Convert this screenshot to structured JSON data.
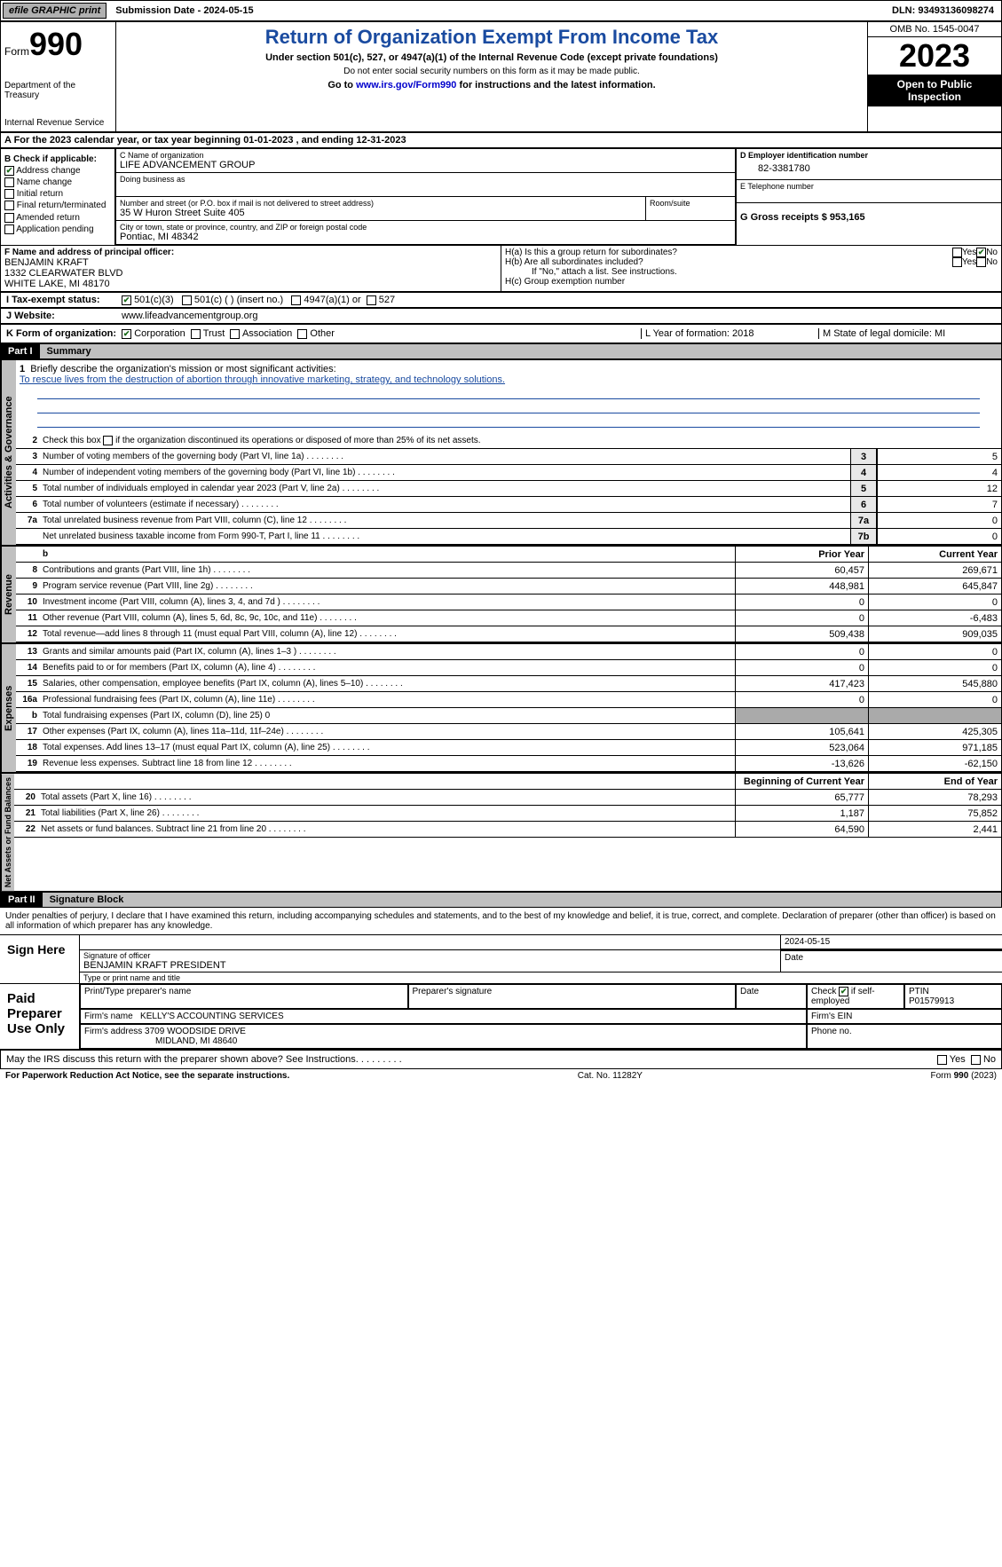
{
  "topbar": {
    "efile": "efile GRAPHIC print",
    "submission_label": "Submission Date - 2024-05-15",
    "dln": "DLN: 93493136098274"
  },
  "header": {
    "form_word": "Form",
    "form_num": "990",
    "dept": "Department of the Treasury",
    "irs": "Internal Revenue Service",
    "title": "Return of Organization Exempt From Income Tax",
    "subtitle": "Under section 501(c), 527, or 4947(a)(1) of the Internal Revenue Code (except private foundations)",
    "warn": "Do not enter social security numbers on this form as it may be made public.",
    "go_prefix": "Go to ",
    "go_link": "www.irs.gov/Form990",
    "go_suffix": " for instructions and the latest information.",
    "omb": "OMB No. 1545-0047",
    "year": "2023",
    "open": "Open to Public Inspection"
  },
  "row_a": "A For the 2023 calendar year, or tax year beginning 01-01-2023    , and ending 12-31-2023",
  "col_b": {
    "title": "B Check if applicable:",
    "addr_change": "Address change",
    "name_change": "Name change",
    "initial": "Initial return",
    "final": "Final return/terminated",
    "amended": "Amended return",
    "pending": "Application pending"
  },
  "org": {
    "c_label": "C Name of organization",
    "name": "LIFE ADVANCEMENT GROUP",
    "dba_label": "Doing business as",
    "addr_label": "Number and street (or P.O. box if mail is not delivered to street address)",
    "addr": "35 W Huron Street Suite 405",
    "room_label": "Room/suite",
    "city_label": "City or town, state or province, country, and ZIP or foreign postal code",
    "city": "Pontiac, MI  48342"
  },
  "right": {
    "d_label": "D Employer identification number",
    "ein": "82-3381780",
    "e_label": "E Telephone number",
    "g_label": "G Gross receipts $ 953,165"
  },
  "officer": {
    "f_label": "F  Name and address of principal officer:",
    "name": "BENJAMIN KRAFT",
    "addr1": "1332 CLEARWATER BLVD",
    "addr2": "WHITE LAKE, MI  48170"
  },
  "h": {
    "ha": "H(a)  Is this a group return for subordinates?",
    "hb": "H(b)  Are all subordinates included?",
    "hb_note": "If \"No,\" attach a list. See instructions.",
    "hc": "H(c)  Group exemption number",
    "yes": "Yes",
    "no": "No"
  },
  "row_i": {
    "label": "I    Tax-exempt status:",
    "c3": "501(c)(3)",
    "c": "501(c) (  ) (insert no.)",
    "a1": "4947(a)(1) or",
    "s527": "527"
  },
  "row_j": {
    "label": "J   Website:",
    "val": "www.lifeadvancementgroup.org"
  },
  "row_k": {
    "label": "K Form of organization:",
    "corp": "Corporation",
    "trust": "Trust",
    "assoc": "Association",
    "other": "Other",
    "l": "L Year of formation: 2018",
    "m": "M State of legal domicile: MI"
  },
  "part1": {
    "hdr": "Part I",
    "title": "Summary"
  },
  "mission": {
    "label": "Briefly describe the organization's mission or most significant activities:",
    "text": "To rescue lives from the destruction of abortion through innovative marketing, strategy, and technology solutions."
  },
  "line2": "Check this box      if the organization discontinued its operations or disposed of more than 25% of its net assets.",
  "lines_gov": [
    {
      "n": "3",
      "d": "Number of voting members of the governing body (Part VI, line 1a)",
      "b": "3",
      "v": "5"
    },
    {
      "n": "4",
      "d": "Number of independent voting members of the governing body (Part VI, line 1b)",
      "b": "4",
      "v": "4"
    },
    {
      "n": "5",
      "d": "Total number of individuals employed in calendar year 2023 (Part V, line 2a)",
      "b": "5",
      "v": "12"
    },
    {
      "n": "6",
      "d": "Total number of volunteers (estimate if necessary)",
      "b": "6",
      "v": "7"
    },
    {
      "n": "7a",
      "d": "Total unrelated business revenue from Part VIII, column (C), line 12",
      "b": "7a",
      "v": "0"
    },
    {
      "n": "",
      "d": "Net unrelated business taxable income from Form 990-T, Part I, line 11",
      "b": "7b",
      "v": "0"
    }
  ],
  "col_hdrs": {
    "prior": "Prior Year",
    "current": "Current Year",
    "begin": "Beginning of Current Year",
    "end": "End of Year"
  },
  "revenue": [
    {
      "n": "8",
      "d": "Contributions and grants (Part VIII, line 1h)",
      "p": "60,457",
      "c": "269,671"
    },
    {
      "n": "9",
      "d": "Program service revenue (Part VIII, line 2g)",
      "p": "448,981",
      "c": "645,847"
    },
    {
      "n": "10",
      "d": "Investment income (Part VIII, column (A), lines 3, 4, and 7d )",
      "p": "0",
      "c": "0"
    },
    {
      "n": "11",
      "d": "Other revenue (Part VIII, column (A), lines 5, 6d, 8c, 9c, 10c, and 11e)",
      "p": "0",
      "c": "-6,483"
    },
    {
      "n": "12",
      "d": "Total revenue—add lines 8 through 11 (must equal Part VIII, column (A), line 12)",
      "p": "509,438",
      "c": "909,035"
    }
  ],
  "expenses": [
    {
      "n": "13",
      "d": "Grants and similar amounts paid (Part IX, column (A), lines 1–3 )",
      "p": "0",
      "c": "0"
    },
    {
      "n": "14",
      "d": "Benefits paid to or for members (Part IX, column (A), line 4)",
      "p": "0",
      "c": "0"
    },
    {
      "n": "15",
      "d": "Salaries, other compensation, employee benefits (Part IX, column (A), lines 5–10)",
      "p": "417,423",
      "c": "545,880"
    },
    {
      "n": "16a",
      "d": "Professional fundraising fees (Part IX, column (A), line 11e)",
      "p": "0",
      "c": "0"
    }
  ],
  "line16b": {
    "n": "b",
    "d": "Total fundraising expenses (Part IX, column (D), line 25) 0"
  },
  "expenses2": [
    {
      "n": "17",
      "d": "Other expenses (Part IX, column (A), lines 11a–11d, 11f–24e)",
      "p": "105,641",
      "c": "425,305"
    },
    {
      "n": "18",
      "d": "Total expenses. Add lines 13–17 (must equal Part IX, column (A), line 25)",
      "p": "523,064",
      "c": "971,185"
    },
    {
      "n": "19",
      "d": "Revenue less expenses. Subtract line 18 from line 12",
      "p": "-13,626",
      "c": "-62,150"
    }
  ],
  "netassets": [
    {
      "n": "20",
      "d": "Total assets (Part X, line 16)",
      "p": "65,777",
      "c": "78,293"
    },
    {
      "n": "21",
      "d": "Total liabilities (Part X, line 26)",
      "p": "1,187",
      "c": "75,852"
    },
    {
      "n": "22",
      "d": "Net assets or fund balances. Subtract line 21 from line 20",
      "p": "64,590",
      "c": "2,441"
    }
  ],
  "side_labels": {
    "gov": "Activities & Governance",
    "rev": "Revenue",
    "exp": "Expenses",
    "net": "Net Assets or Fund Balances"
  },
  "part2": {
    "hdr": "Part II",
    "title": "Signature Block"
  },
  "sig": {
    "declare": "Under penalties of perjury, I declare that I have examined this return, including accompanying schedules and statements, and to the best of my knowledge and belief, it is true, correct, and complete. Declaration of preparer (other than officer) is based on all information of which preparer has any knowledge.",
    "sign_here": "Sign Here",
    "sig_officer": "Signature of officer",
    "officer_name": "BENJAMIN KRAFT PRESIDENT",
    "type_name": "Type or print name and title",
    "date_label": "Date",
    "date_val": "2024-05-15",
    "paid": "Paid Preparer Use Only",
    "prep_name_label": "Print/Type preparer's name",
    "prep_sig_label": "Preparer's signature",
    "check_if": "Check",
    "self_emp": "if self-employed",
    "ptin_label": "PTIN",
    "ptin": "P01579913",
    "firm_name_label": "Firm's name",
    "firm_name": "KELLY'S ACCOUNTING SERVICES",
    "firm_ein_label": "Firm's EIN",
    "firm_addr_label": "Firm's address",
    "firm_addr1": "3709 WOODSIDE DRIVE",
    "firm_addr2": "MIDLAND, MI  48640",
    "phone_label": "Phone no.",
    "discuss": "May the IRS discuss this return with the preparer shown above? See Instructions."
  },
  "footer": {
    "paperwork": "For Paperwork Reduction Act Notice, see the separate instructions.",
    "cat": "Cat. No. 11282Y",
    "form": "Form 990 (2023)"
  }
}
